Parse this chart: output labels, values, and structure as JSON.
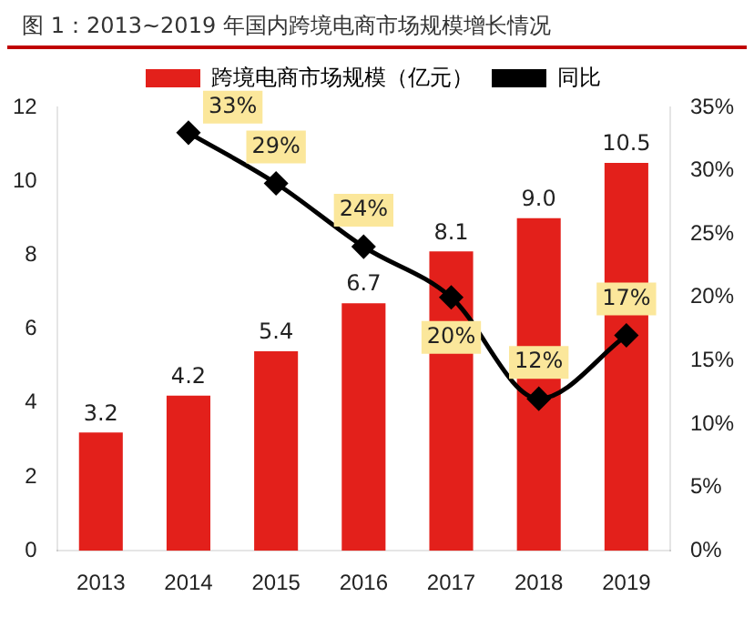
{
  "chart_data": {
    "type": "bar",
    "title": "图 1：2013~2019 年国内跨境电商市场规模增长情况",
    "categories": [
      "2013",
      "2014",
      "2015",
      "2016",
      "2017",
      "2018",
      "2019"
    ],
    "series": [
      {
        "name": "跨境电商市场规模（亿元）",
        "color": "#e3201b",
        "values": [
          3.2,
          4.2,
          5.4,
          6.7,
          8.1,
          9.0,
          10.5
        ],
        "value_labels": [
          "3.2",
          "4.2",
          "5.4",
          "6.7",
          "8.1",
          "9.0",
          "10.5"
        ]
      },
      {
        "name": "同比",
        "type": "line",
        "axis": "y2",
        "color": "#000000",
        "marker": "diamond",
        "values": [
          null,
          33,
          29,
          24,
          20,
          12,
          17
        ],
        "value_labels": [
          null,
          "33%",
          "29%",
          "24%",
          "20%",
          "12%",
          "17%"
        ]
      }
    ],
    "ylim": [
      0,
      12
    ],
    "yticks": [
      0,
      2,
      4,
      6,
      8,
      10,
      12
    ],
    "y2lim": [
      0,
      35
    ],
    "y2ticks": [
      {
        "value": 0,
        "label": "0%"
      },
      {
        "value": 5,
        "label": "5%"
      },
      {
        "value": 10,
        "label": "10%"
      },
      {
        "value": 15,
        "label": "15%"
      },
      {
        "value": 20,
        "label": "20%"
      },
      {
        "value": 25,
        "label": "25%"
      },
      {
        "value": 30,
        "label": "30%"
      },
      {
        "value": 35,
        "label": "35%"
      }
    ],
    "grid": false,
    "legend": "top"
  }
}
